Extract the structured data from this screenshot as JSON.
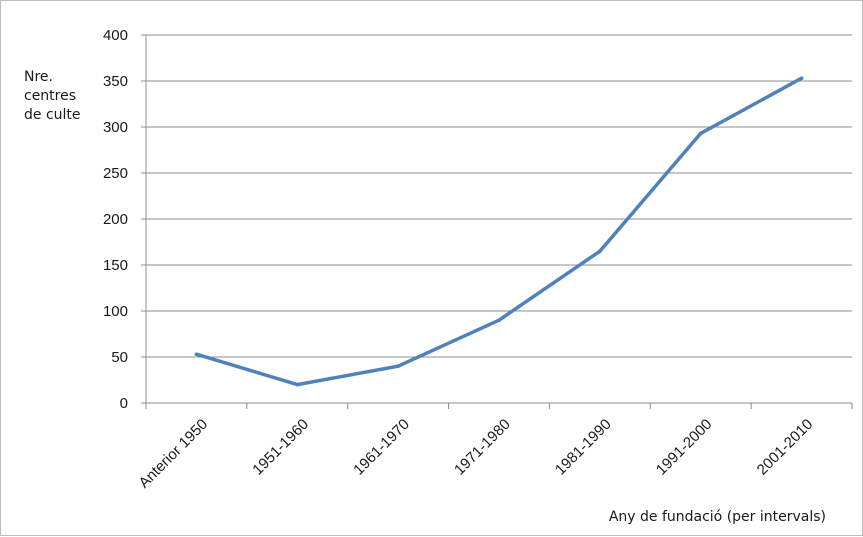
{
  "chart_data": {
    "type": "line",
    "categories": [
      "Anterior 1950",
      "1951-1960",
      "1961-1970",
      "1971-1980",
      "1981-1990",
      "1991-2000",
      "2001-2010"
    ],
    "series": [
      {
        "values": [
          53,
          20,
          40,
          90,
          165,
          293,
          353
        ]
      }
    ],
    "ylabel_lines": [
      "Nre.",
      "centres",
      "de culte"
    ],
    "xlabel": "Any de fundació (per intervals)",
    "ylim": [
      0,
      400
    ],
    "yticks": [
      0,
      50,
      100,
      150,
      200,
      250,
      300,
      350,
      400
    ],
    "grid": true,
    "legend": "none",
    "line_color": "#4f81bd",
    "grid_color": "#8c8c8c"
  }
}
